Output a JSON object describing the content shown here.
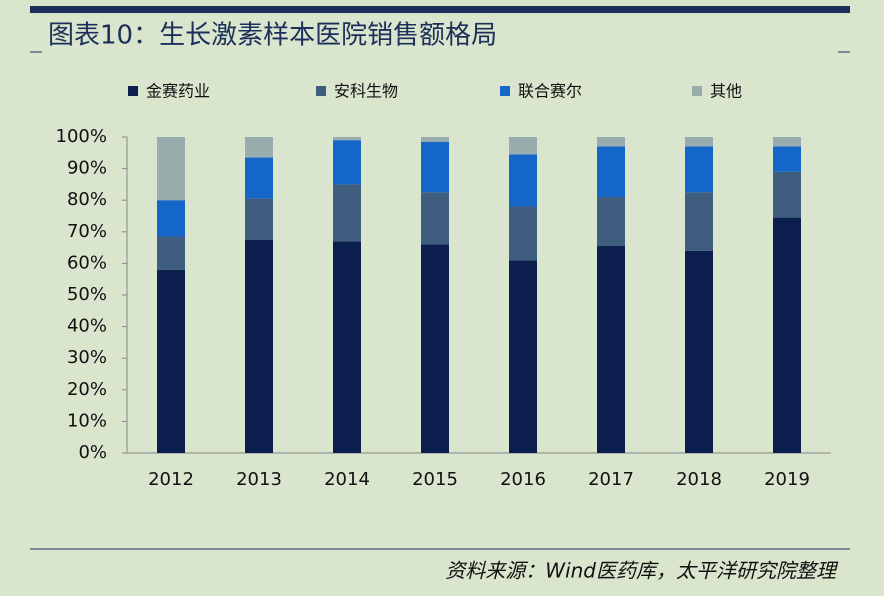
{
  "chart_data": {
    "type": "stacked-bar",
    "title": "图表10：生长激素样本医院销售额格局",
    "source": "资料来源：Wind医药库，太平洋研究院整理",
    "categories": [
      "2012",
      "2013",
      "2014",
      "2015",
      "2016",
      "2017",
      "2018",
      "2019"
    ],
    "series": [
      {
        "name": "金赛药业",
        "color": "#0b1e4e",
        "values": [
          58,
          67.5,
          67,
          66,
          61,
          65.5,
          64,
          74.5
        ]
      },
      {
        "name": "安科生物",
        "color": "#3f5d7e",
        "values": [
          10.5,
          13,
          18,
          16.5,
          17,
          15.5,
          18.5,
          14.5
        ]
      },
      {
        "name": "联合赛尔",
        "color": "#1466c8",
        "values": [
          11.5,
          13,
          14,
          16,
          16.5,
          16,
          14.5,
          8
        ]
      },
      {
        "name": "其他",
        "color": "#9aadad",
        "values": [
          20,
          6.5,
          1,
          1.5,
          5.5,
          3,
          3,
          3
        ]
      }
    ],
    "ylim": [
      0,
      100
    ],
    "yticks": [
      {
        "value": 0,
        "label": "0%"
      },
      {
        "value": 10,
        "label": "10%"
      },
      {
        "value": 20,
        "label": "20%"
      },
      {
        "value": 30,
        "label": "30%"
      },
      {
        "value": 40,
        "label": "40%"
      },
      {
        "value": 50,
        "label": "50%"
      },
      {
        "value": 60,
        "label": "60%"
      },
      {
        "value": 70,
        "label": "70%"
      },
      {
        "value": 80,
        "label": "80%"
      },
      {
        "value": 90,
        "label": "90%"
      },
      {
        "value": 100,
        "label": "100%"
      }
    ],
    "legend_position": "top"
  }
}
